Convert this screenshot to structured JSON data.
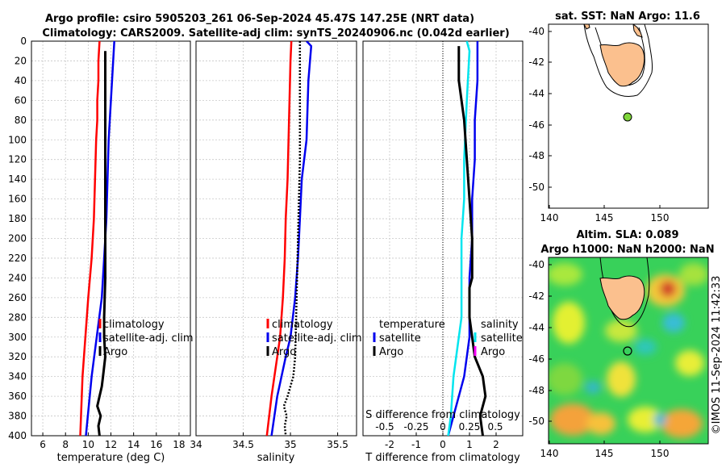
{
  "title": {
    "line1": "Argo profile: csiro 5905203_261 06-Sep-2024 45.47S 147.25E (NRT data)",
    "line2": "Climatology: CARS2009. Satellite-adj clim: synTS_20240906.nc (0.042d earlier)"
  },
  "side_text": "©IMOS 11-Sep-2024 11:42:33",
  "colors": {
    "red": "#ff0000",
    "blue": "#0000ee",
    "black": "#000000",
    "cyan": "#00e5ee",
    "magenta": "#ff00ff",
    "land": "#fbc08e"
  },
  "chart_data": [
    {
      "type": "line",
      "name": "temperature-panel",
      "xlabel": "temperature (deg C)",
      "ylabel": "",
      "xlim": [
        5,
        19
      ],
      "ylim": [
        400,
        0
      ],
      "xticks": [
        "6",
        "8",
        "10",
        "12",
        "14",
        "16",
        "18"
      ],
      "xtick_values": [
        6,
        8,
        10,
        12,
        14,
        16,
        18
      ],
      "yticks": [
        0,
        20,
        40,
        60,
        80,
        100,
        120,
        140,
        160,
        180,
        200,
        220,
        240,
        260,
        280,
        300,
        320,
        340,
        360,
        380,
        400
      ],
      "legend": [
        "climatology",
        "satellite-adj. clim",
        "Argo"
      ],
      "series": [
        {
          "name": "climatology",
          "color": "#ff0000",
          "x": [
            11.0,
            10.9,
            10.9,
            10.8,
            10.8,
            10.7,
            10.6,
            10.5,
            10.3,
            10.0,
            9.5,
            9.3
          ],
          "y": [
            0,
            20,
            40,
            60,
            80,
            100,
            140,
            180,
            220,
            260,
            340,
            400
          ]
        },
        {
          "name": "satellite-adj. clim",
          "color": "#0000ee",
          "x": [
            12.3,
            12.2,
            12.1,
            12.0,
            11.9,
            11.8,
            11.7,
            11.6,
            11.4,
            11.2,
            10.3,
            9.8
          ],
          "y": [
            0,
            20,
            40,
            60,
            80,
            100,
            140,
            180,
            220,
            260,
            340,
            400
          ]
        },
        {
          "name": "Argo",
          "color": "#000000",
          "x": [
            11.5,
            11.5,
            11.5,
            11.5,
            11.5,
            11.5,
            11.5,
            11.4,
            11.4,
            11.5,
            11.3,
            11.2,
            11.0,
            10.8,
            11.1,
            10.9,
            11.0
          ],
          "y": [
            10,
            40,
            80,
            120,
            160,
            200,
            240,
            280,
            300,
            320,
            340,
            350,
            360,
            370,
            380,
            390,
            400
          ]
        }
      ]
    },
    {
      "type": "line",
      "name": "salinity-panel",
      "xlabel": "salinity",
      "xlim": [
        34,
        35.7
      ],
      "ylim": [
        400,
        0
      ],
      "xticks": [
        "34",
        "34.5",
        "35",
        "35.5"
      ],
      "xtick_values": [
        34,
        34.5,
        35,
        35.5
      ],
      "legend": [
        "climatology",
        "satellite-adj. clim",
        "Argo"
      ],
      "series": [
        {
          "name": "climatology",
          "color": "#ff0000",
          "x": [
            35.01,
            35.0,
            34.99,
            34.98,
            34.97,
            34.95,
            34.94,
            34.92,
            34.89,
            34.86,
            34.8,
            34.75
          ],
          "y": [
            0,
            20,
            60,
            100,
            140,
            180,
            220,
            260,
            300,
            320,
            360,
            400
          ]
        },
        {
          "name": "satellite-adj. clim",
          "color": "#0000ee",
          "x": [
            35.17,
            35.22,
            35.19,
            35.17,
            35.12,
            35.1,
            35.08,
            35.05,
            35.0,
            34.95,
            34.86,
            34.8
          ],
          "y": [
            0,
            5,
            40,
            100,
            140,
            180,
            220,
            260,
            300,
            320,
            360,
            400
          ]
        },
        {
          "name": "Argo",
          "color": "#000000",
          "style": "dotted",
          "x": [
            35.1,
            35.1,
            35.1,
            35.1,
            35.09,
            35.08,
            35.07,
            35.06,
            35.05,
            35.03,
            34.97,
            34.93,
            34.96,
            34.94,
            34.95
          ],
          "y": [
            0,
            40,
            80,
            120,
            160,
            200,
            240,
            280,
            320,
            340,
            360,
            370,
            380,
            390,
            400
          ]
        }
      ]
    },
    {
      "type": "line",
      "name": "difference-panel",
      "xlabel": "T difference from climatology",
      "top_label": "S difference from climatology",
      "xlim": [
        -3,
        3
      ],
      "ylim": [
        400,
        0
      ],
      "xticks": [
        "-2",
        "-1",
        "0",
        "1",
        "2"
      ],
      "xtick_values": [
        -2,
        -1,
        0,
        1,
        2
      ],
      "top_ticks": [
        "-0.5",
        "-0.25",
        "0",
        "0.25",
        "0.5"
      ],
      "legend_left": [
        "temperature",
        "satellite",
        "Argo"
      ],
      "legend_right": [
        "salinity",
        "satellite",
        "Argo"
      ],
      "series": [
        {
          "name": "temperature satellite",
          "color": "#0000ee",
          "x": [
            1.3,
            1.3,
            1.2,
            1.2,
            1.1,
            1.1,
            1.0,
            1.0,
            1.0,
            1.0,
            0.8,
            0.6,
            0.4,
            0.2
          ],
          "y": [
            0,
            40,
            80,
            120,
            160,
            200,
            240,
            260,
            280,
            300,
            340,
            360,
            380,
            400
          ]
        },
        {
          "name": "salinity satellite",
          "color": "#00e5ee",
          "x": [
            0.9,
            1.0,
            0.9,
            0.8,
            0.8,
            0.7,
            0.7,
            0.7,
            0.6,
            0.5,
            0.4,
            0.3,
            0.2
          ],
          "y": [
            0,
            10,
            60,
            120,
            160,
            200,
            240,
            280,
            300,
            320,
            340,
            380,
            400
          ]
        },
        {
          "name": "temperature Argo",
          "color": "#000000",
          "x": [
            0.6,
            0.6,
            0.8,
            0.9,
            1.0,
            1.1,
            1.1,
            1.0,
            1.0,
            1.0,
            1.1,
            1.2,
            1.5,
            1.6,
            1.4,
            1.5
          ],
          "y": [
            5,
            40,
            80,
            120,
            160,
            200,
            240,
            250,
            260,
            280,
            300,
            320,
            340,
            360,
            380,
            400
          ]
        }
      ]
    },
    {
      "type": "map",
      "name": "sst-map",
      "title": "sat. SST: NaN Argo: 11.6",
      "xticks": [
        "140",
        "145",
        "150"
      ],
      "yticks": [
        "-40",
        "-42",
        "-44",
        "-46",
        "-48",
        "-50"
      ],
      "marker": {
        "lon": 147.25,
        "lat": -45.47,
        "color": "#7fd63a"
      }
    },
    {
      "type": "heatmap",
      "name": "sla-map",
      "title_line1": "Altim. SLA: 0.089",
      "title_line2": "Argo h1000: NaN h2000: NaN",
      "xticks": [
        "140",
        "145",
        "150"
      ],
      "yticks": [
        "-40",
        "-42",
        "-44",
        "-46",
        "-48",
        "-50"
      ],
      "marker": {
        "lon": 147.25,
        "lat": -45.47
      }
    }
  ]
}
